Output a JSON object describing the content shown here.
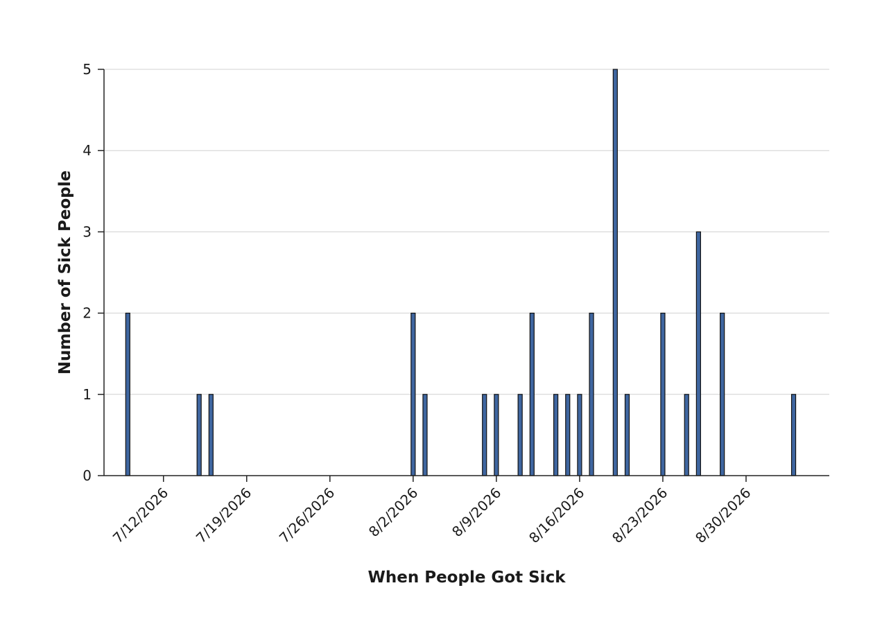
{
  "chart_data": {
    "type": "bar",
    "title": "",
    "xlabel": "When People Got Sick",
    "ylabel": "Number of Sick People",
    "ylim": [
      0,
      5
    ],
    "yticks": [
      0,
      1,
      2,
      3,
      4,
      5
    ],
    "xlim": [
      "2026-07-07",
      "2026-09-06"
    ],
    "xticks": [
      {
        "date": "2026-07-12",
        "label": "7/12/2026"
      },
      {
        "date": "2026-07-19",
        "label": "7/19/2026"
      },
      {
        "date": "2026-07-26",
        "label": "7/26/2026"
      },
      {
        "date": "2026-08-02",
        "label": "8/2/2026"
      },
      {
        "date": "2026-08-09",
        "label": "8/9/2026"
      },
      {
        "date": "2026-08-16",
        "label": "8/16/2026"
      },
      {
        "date": "2026-08-23",
        "label": "8/23/2026"
      },
      {
        "date": "2026-08-30",
        "label": "8/30/2026"
      }
    ],
    "grid": true,
    "bar_color": "#3f66a0",
    "points": [
      {
        "date": "2026-07-09",
        "value": 2
      },
      {
        "date": "2026-07-15",
        "value": 1
      },
      {
        "date": "2026-07-16",
        "value": 1
      },
      {
        "date": "2026-08-02",
        "value": 2
      },
      {
        "date": "2026-08-03",
        "value": 1
      },
      {
        "date": "2026-08-08",
        "value": 1
      },
      {
        "date": "2026-08-09",
        "value": 1
      },
      {
        "date": "2026-08-11",
        "value": 1
      },
      {
        "date": "2026-08-12",
        "value": 2
      },
      {
        "date": "2026-08-14",
        "value": 1
      },
      {
        "date": "2026-08-15",
        "value": 1
      },
      {
        "date": "2026-08-16",
        "value": 1
      },
      {
        "date": "2026-08-17",
        "value": 2
      },
      {
        "date": "2026-08-19",
        "value": 5
      },
      {
        "date": "2026-08-20",
        "value": 1
      },
      {
        "date": "2026-08-23",
        "value": 2
      },
      {
        "date": "2026-08-25",
        "value": 1
      },
      {
        "date": "2026-08-26",
        "value": 3
      },
      {
        "date": "2026-08-28",
        "value": 2
      },
      {
        "date": "2026-09-03",
        "value": 1
      }
    ]
  }
}
